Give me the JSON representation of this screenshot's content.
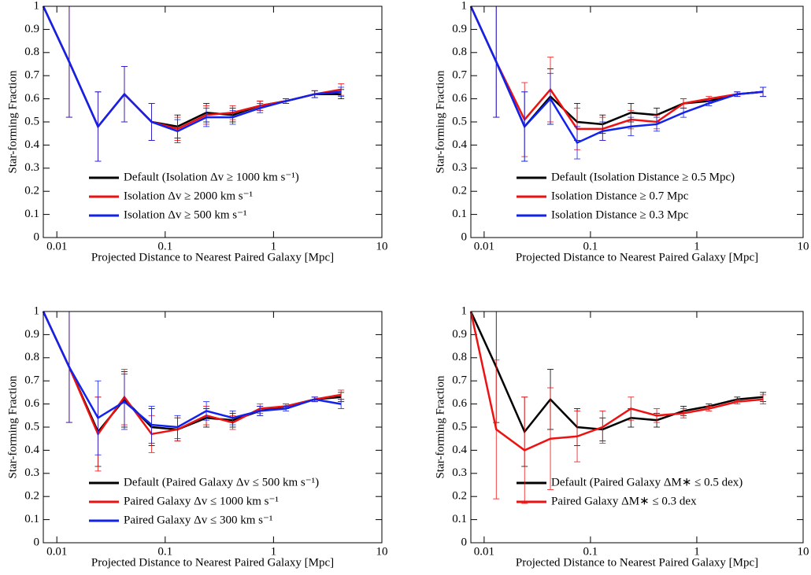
{
  "chart_data": [
    {
      "type": "line",
      "xlabel": "Projected Distance to Nearest Paired Galaxy [Mpc]",
      "ylabel": "Star-forming Fraction",
      "xlog": true,
      "xlim": [
        0.0075,
        10
      ],
      "ylim": [
        0,
        1
      ],
      "xticks": [
        0.01,
        0.1,
        1,
        10
      ],
      "yticks": [
        0,
        0.1,
        0.2,
        0.3,
        0.4,
        0.5,
        0.6,
        0.7,
        0.8,
        0.9,
        1
      ],
      "x": [
        0.0075,
        0.013,
        0.024,
        0.042,
        0.075,
        0.13,
        0.24,
        0.42,
        0.75,
        1.3,
        2.4,
        4.2
      ],
      "series": [
        {
          "name": "Default (Isolation Δv ≥ 1000 km s⁻¹)",
          "color": "#000000",
          "values": [
            1,
            0.76,
            0.48,
            0.62,
            0.5,
            0.48,
            0.54,
            0.53,
            0.57,
            0.59,
            0.62,
            0.62
          ],
          "errors": [
            null,
            0.24,
            0.15,
            0.12,
            0.08,
            0.05,
            0.04,
            0.03,
            0.02,
            0.01,
            0.015,
            0.02
          ]
        },
        {
          "name": "Isolation Δv ≥ 2000 km s⁻¹",
          "color": "#ee1111",
          "values": [
            1,
            0.76,
            0.48,
            0.62,
            0.5,
            0.47,
            0.53,
            0.54,
            0.57,
            0.59,
            0.62,
            0.64
          ],
          "errors": [
            null,
            0.24,
            0.15,
            0.12,
            0.08,
            0.05,
            0.04,
            0.03,
            0.02,
            0.01,
            0.015,
            0.025
          ]
        },
        {
          "name": "Isolation Δv ≥ 500 km s⁻¹",
          "color": "#1122ee",
          "values": [
            1,
            0.76,
            0.48,
            0.62,
            0.5,
            0.46,
            0.52,
            0.52,
            0.56,
            0.59,
            0.62,
            0.63
          ],
          "errors": [
            null,
            0.24,
            0.15,
            0.12,
            0.08,
            0.05,
            0.04,
            0.03,
            0.02,
            0.01,
            0.015,
            0.02
          ]
        }
      ]
    },
    {
      "type": "line",
      "xlabel": "Projected Distance to Nearest Paired Galaxy [Mpc]",
      "ylabel": "Star-forming Fraction",
      "xlog": true,
      "xlim": [
        0.0075,
        10
      ],
      "ylim": [
        0,
        1
      ],
      "xticks": [
        0.01,
        0.1,
        1,
        10
      ],
      "yticks": [
        0,
        0.1,
        0.2,
        0.3,
        0.4,
        0.5,
        0.6,
        0.7,
        0.8,
        0.9,
        1
      ],
      "x": [
        0.0075,
        0.013,
        0.024,
        0.042,
        0.075,
        0.13,
        0.24,
        0.42,
        0.75,
        1.3,
        2.4,
        4.2
      ],
      "series": [
        {
          "name": "Default (Isolation Distance ≥ 0.5 Mpc)",
          "color": "#000000",
          "values": [
            1,
            0.76,
            0.48,
            0.61,
            0.5,
            0.49,
            0.54,
            0.53,
            0.58,
            0.59,
            0.62,
            0.63
          ],
          "errors": [
            null,
            0.24,
            0.15,
            0.12,
            0.08,
            0.04,
            0.04,
            0.03,
            0.02,
            0.01,
            0.01,
            0.02
          ]
        },
        {
          "name": "Isolation Distance ≥ 0.7 Mpc",
          "color": "#ee1111",
          "values": [
            1,
            0.76,
            0.51,
            0.64,
            0.47,
            0.47,
            0.51,
            0.5,
            0.58,
            0.6,
            0.62,
            0.63
          ],
          "errors": [
            null,
            0.24,
            0.16,
            0.14,
            0.09,
            0.05,
            0.04,
            0.03,
            0.02,
            0.01,
            0.01,
            0.02
          ]
        },
        {
          "name": "Isolation Distance ≥ 0.3 Mpc",
          "color": "#1122ee",
          "values": [
            1,
            0.76,
            0.48,
            0.6,
            0.41,
            0.46,
            0.48,
            0.49,
            0.54,
            0.58,
            0.62,
            0.63
          ],
          "errors": [
            null,
            0.24,
            0.15,
            0.11,
            0.07,
            0.04,
            0.04,
            0.03,
            0.02,
            0.01,
            0.01,
            0.02
          ]
        }
      ]
    },
    {
      "type": "line",
      "xlabel": "Projected Distance to Nearest Paired Galaxy [Mpc]",
      "ylabel": "Star-forming Fraction",
      "xlog": true,
      "xlim": [
        0.0075,
        10
      ],
      "ylim": [
        0,
        1
      ],
      "xticks": [
        0.01,
        0.1,
        1,
        10
      ],
      "yticks": [
        0,
        0.1,
        0.2,
        0.3,
        0.4,
        0.5,
        0.6,
        0.7,
        0.8,
        0.9,
        1
      ],
      "x": [
        0.0075,
        0.013,
        0.024,
        0.042,
        0.075,
        0.13,
        0.24,
        0.42,
        0.75,
        1.3,
        2.4,
        4.2
      ],
      "series": [
        {
          "name": "Default (Paired Galaxy Δv ≤ 500 km s⁻¹)",
          "color": "#000000",
          "values": [
            1,
            0.76,
            0.48,
            0.62,
            0.5,
            0.49,
            0.54,
            0.53,
            0.57,
            0.59,
            0.62,
            0.63
          ],
          "errors": [
            null,
            0.24,
            0.15,
            0.12,
            0.08,
            0.05,
            0.04,
            0.03,
            0.02,
            0.01,
            0.01,
            0.02
          ]
        },
        {
          "name": "Paired Galaxy Δv ≤ 1000 km s⁻¹",
          "color": "#ee1111",
          "values": [
            1,
            0.76,
            0.47,
            0.63,
            0.47,
            0.49,
            0.55,
            0.52,
            0.58,
            0.59,
            0.62,
            0.64
          ],
          "errors": [
            null,
            0.24,
            0.16,
            0.12,
            0.08,
            0.05,
            0.04,
            0.03,
            0.02,
            0.01,
            0.01,
            0.02
          ]
        },
        {
          "name": "Paired Galaxy Δv ≤ 300 km s⁻¹",
          "color": "#1122ee",
          "values": [
            1,
            0.76,
            0.54,
            0.61,
            0.51,
            0.5,
            0.57,
            0.54,
            0.57,
            0.58,
            0.62,
            0.6
          ],
          "errors": [
            null,
            0.24,
            0.16,
            0.12,
            0.08,
            0.05,
            0.04,
            0.03,
            0.02,
            0.01,
            0.01,
            0.02
          ]
        }
      ]
    },
    {
      "type": "line",
      "xlabel": "Projected Distance to Nearest Paired Galaxy [Mpc]",
      "ylabel": "Star-forming Fraction",
      "xlog": true,
      "xlim": [
        0.0075,
        10
      ],
      "ylim": [
        0,
        1
      ],
      "xticks": [
        0.01,
        0.1,
        1,
        10
      ],
      "yticks": [
        0,
        0.1,
        0.2,
        0.3,
        0.4,
        0.5,
        0.6,
        0.7,
        0.8,
        0.9,
        1
      ],
      "x": [
        0.0075,
        0.013,
        0.024,
        0.042,
        0.075,
        0.13,
        0.24,
        0.42,
        0.75,
        1.3,
        2.4,
        4.2
      ],
      "series": [
        {
          "name": "Default (Paired Galaxy ΔM∗ ≤ 0.5 dex)",
          "color": "#000000",
          "values": [
            1,
            0.76,
            0.48,
            0.62,
            0.5,
            0.49,
            0.54,
            0.53,
            0.57,
            0.59,
            0.62,
            0.63
          ],
          "errors": [
            null,
            0.24,
            0.15,
            0.13,
            0.08,
            0.05,
            0.04,
            0.03,
            0.02,
            0.01,
            0.01,
            0.02
          ]
        },
        {
          "name": "Paired Galaxy ΔM∗ ≤ 0.3 dex",
          "color": "#ee1111",
          "values": [
            1,
            0.49,
            0.4,
            0.45,
            0.46,
            0.5,
            0.58,
            0.55,
            0.56,
            0.58,
            0.61,
            0.62
          ],
          "errors": [
            null,
            0.3,
            0.23,
            0.22,
            0.11,
            0.07,
            0.05,
            0.03,
            0.02,
            0.01,
            0.01,
            0.02
          ]
        }
      ]
    }
  ]
}
